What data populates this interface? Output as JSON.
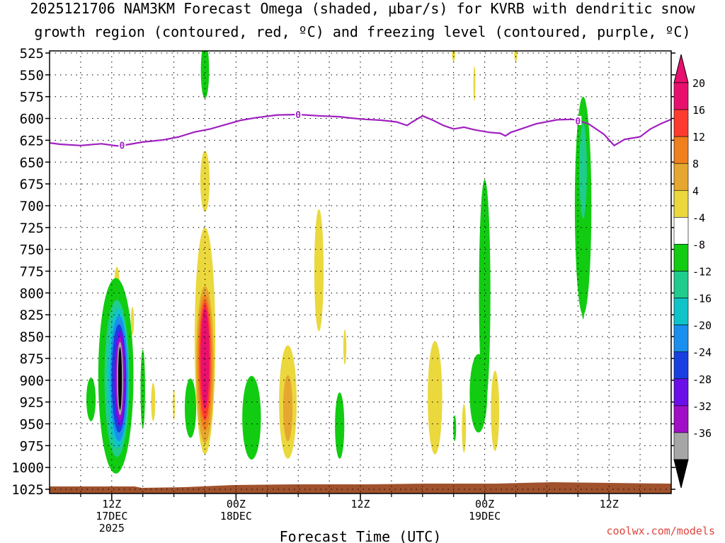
{
  "title_line1": "2025121706 NAM3KM Forecast Omega (shaded, μbar/s) for KVRB with dendritic snow",
  "title_line2": "growth region (contoured, red, ºC) and freezing level (contoured, purple, ºC)",
  "credit": "coolwx.com/models",
  "chart_data": {
    "type": "heatmap",
    "title": "2025121706 NAM3KM Forecast Omega (shaded, μbar/s) for KVRB with dendritic snow growth region (contoured, red, ºC) and freezing level (contoured, purple, ºC)",
    "xlabel": "Forecast Time (UTC)",
    "ylabel": "",
    "x_range_hours": [
      6,
      66
    ],
    "y_range_mb": [
      520,
      1030
    ],
    "y_ticks": [
      525,
      550,
      575,
      600,
      625,
      650,
      675,
      700,
      725,
      750,
      775,
      800,
      825,
      850,
      875,
      900,
      925,
      950,
      975,
      1000,
      1025
    ],
    "x_ticks": [
      {
        "hour": 12,
        "line1": "12Z",
        "line2": "17DEC",
        "line3": "2025"
      },
      {
        "hour": 24,
        "line1": "00Z",
        "line2": "18DEC",
        "line3": ""
      },
      {
        "hour": 36,
        "line1": "12Z",
        "line2": "",
        "line3": ""
      },
      {
        "hour": 48,
        "line1": "00Z",
        "line2": "19DEC",
        "line3": ""
      },
      {
        "hour": 60,
        "line1": "12Z",
        "line2": "",
        "line3": ""
      }
    ],
    "colorbar": {
      "labels": [
        "20",
        "16",
        "12",
        "8",
        "4",
        "-4",
        "-8",
        "-12",
        "-16",
        "-20",
        "-24",
        "-28",
        "-32",
        "-36"
      ],
      "colors": [
        "#e8106e",
        "#ff3b2f",
        "#f07f1e",
        "#e5a72f",
        "#ead83d",
        "#ffffff",
        "#11cc11",
        "#1fcc8e",
        "#0fc4c8",
        "#1a8fee",
        "#1a3fe0",
        "#6b0fe8",
        "#a00fc6",
        "#a6a6a6"
      ],
      "top_arrow_color": "#e8106e",
      "bottom_arrow_color": "#000000"
    },
    "freezing_level": {
      "color": "#a020c0",
      "label": "0",
      "label_hours": [
        13,
        30,
        57
      ],
      "points": [
        [
          6,
          628
        ],
        [
          7,
          629.5
        ],
        [
          9,
          631
        ],
        [
          11,
          629
        ],
        [
          12.5,
          631.5
        ],
        [
          13.5,
          630
        ],
        [
          15,
          627
        ],
        [
          17,
          624.5
        ],
        [
          18.5,
          621
        ],
        [
          20,
          615.5
        ],
        [
          21.5,
          612
        ],
        [
          23,
          607
        ],
        [
          24.5,
          602
        ],
        [
          26,
          599
        ],
        [
          28,
          596
        ],
        [
          30,
          595.5
        ],
        [
          32,
          597
        ],
        [
          34,
          598
        ],
        [
          35,
          599.5
        ],
        [
          36.5,
          601
        ],
        [
          38,
          602
        ],
        [
          39.5,
          604
        ],
        [
          40.5,
          608
        ],
        [
          41,
          604
        ],
        [
          42,
          597
        ],
        [
          43,
          602
        ],
        [
          44,
          608
        ],
        [
          45,
          612
        ],
        [
          46,
          610
        ],
        [
          47,
          613
        ],
        [
          48.5,
          616
        ],
        [
          49.5,
          617
        ],
        [
          50,
          620
        ],
        [
          50.5,
          616
        ],
        [
          51.5,
          612
        ],
        [
          53,
          606
        ],
        [
          55,
          601.5
        ],
        [
          56.5,
          601
        ],
        [
          58,
          606
        ],
        [
          59.5,
          618
        ],
        [
          60.5,
          631
        ],
        [
          61.5,
          624
        ],
        [
          63,
          621
        ],
        [
          64,
          612
        ],
        [
          65,
          606
        ],
        [
          66,
          601
        ]
      ]
    },
    "cells": [
      {
        "label": "omega-4-cell",
        "hour": 12.5,
        "mb": 790,
        "hw": 0.25,
        "hh": 20,
        "color": "#ead83d"
      },
      {
        "label": "omega-8-cell",
        "hour": 12.4,
        "mb": 895,
        "hw": 1.7,
        "hh": 112,
        "color": "#11cc11"
      },
      {
        "label": "omega-12-cell",
        "hour": 12.5,
        "mb": 898,
        "hw": 1.2,
        "hh": 90,
        "color": "#1fcc8e"
      },
      {
        "label": "omega-16-cell",
        "hour": 12.6,
        "mb": 898,
        "hw": 1.0,
        "hh": 80,
        "color": "#0fc4c8"
      },
      {
        "label": "omega-20-cell",
        "hour": 12.7,
        "mb": 898,
        "hw": 0.85,
        "hh": 72,
        "color": "#1a8fee"
      },
      {
        "label": "omega-24-cell",
        "hour": 12.7,
        "mb": 898,
        "hw": 0.7,
        "hh": 62,
        "color": "#1a3fe0"
      },
      {
        "label": "omega-28-cell",
        "hour": 12.8,
        "mb": 898,
        "hw": 0.55,
        "hh": 55,
        "color": "#6b0fe8"
      },
      {
        "label": "omega-32-cell",
        "hour": 12.8,
        "mb": 898,
        "hw": 0.42,
        "hh": 48,
        "color": "#a00fc6"
      },
      {
        "label": "omega-36-cell",
        "hour": 12.8,
        "mb": 898,
        "hw": 0.3,
        "hh": 42,
        "color": "#a6a6a6"
      },
      {
        "label": "omega-40-cell",
        "hour": 12.8,
        "mb": 898,
        "hw": 0.18,
        "hh": 36,
        "color": "#000000"
      },
      {
        "label": "omega-8-cell",
        "hour": 10.0,
        "mb": 922,
        "hw": 0.45,
        "hh": 25,
        "color": "#11cc11"
      },
      {
        "label": "omega-4-cell",
        "hour": 14.0,
        "mb": 832,
        "hw": 0.15,
        "hh": 16,
        "color": "#ead83d"
      },
      {
        "label": "omega-8-cell",
        "hour": 15.0,
        "mb": 910,
        "hw": 0.22,
        "hh": 45,
        "color": "#11cc11"
      },
      {
        "label": "omega-4-cell",
        "hour": 16.0,
        "mb": 925,
        "hw": 0.2,
        "hh": 22,
        "color": "#ead83d"
      },
      {
        "label": "omega-4-cell",
        "hour": 18.0,
        "mb": 928,
        "hw": 0.1,
        "hh": 18,
        "color": "#ead83d"
      },
      {
        "label": "omega-8-cell",
        "hour": 19.6,
        "mb": 932,
        "hw": 0.55,
        "hh": 34,
        "color": "#11cc11"
      },
      {
        "label": "omega-8-cell",
        "hour": 21.0,
        "mb": 545,
        "hw": 0.4,
        "hh": 32,
        "color": "#11cc11"
      },
      {
        "label": "omega-4-cell",
        "hour": 21.0,
        "mb": 672,
        "hw": 0.45,
        "hh": 35,
        "color": "#ead83d"
      },
      {
        "label": "omega-4-cell",
        "hour": 21.0,
        "mb": 855,
        "hw": 1.0,
        "hh": 130,
        "color": "#ead83d"
      },
      {
        "label": "omega-8-cell",
        "hour": 21.0,
        "mb": 882,
        "hw": 0.85,
        "hh": 90,
        "color": "#e5a72f"
      },
      {
        "label": "omega-12-cell",
        "hour": 21.0,
        "mb": 880,
        "hw": 0.7,
        "hh": 78,
        "color": "#f07f1e"
      },
      {
        "label": "omega-16-cell",
        "hour": 21.0,
        "mb": 878,
        "hw": 0.56,
        "hh": 68,
        "color": "#ff3b2f"
      },
      {
        "label": "omega-20-cell",
        "hour": 21.0,
        "mb": 875,
        "hw": 0.42,
        "hh": 58,
        "color": "#e8106e"
      },
      {
        "label": "omega-8-cell",
        "hour": 25.5,
        "mb": 943,
        "hw": 0.9,
        "hh": 48,
        "color": "#11cc11"
      },
      {
        "label": "omega-4-cell",
        "hour": 29.0,
        "mb": 925,
        "hw": 0.85,
        "hh": 65,
        "color": "#ead83d"
      },
      {
        "label": "omega-8-cell",
        "hour": 29.0,
        "mb": 932,
        "hw": 0.45,
        "hh": 38,
        "color": "#e5a72f"
      },
      {
        "label": "omega-4-cell",
        "hour": 32.0,
        "mb": 774,
        "hw": 0.45,
        "hh": 70,
        "color": "#ead83d"
      },
      {
        "label": "omega-4-cell",
        "hour": 34.5,
        "mb": 862,
        "hw": 0.15,
        "hh": 20,
        "color": "#ead83d"
      },
      {
        "label": "omega-8-cell",
        "hour": 34.0,
        "mb": 952,
        "hw": 0.45,
        "hh": 38,
        "color": "#11cc11"
      },
      {
        "label": "omega-4-cell",
        "hour": 45.0,
        "mb": 525,
        "hw": 0.15,
        "hh": 10,
        "color": "#ead83d"
      },
      {
        "label": "omega-4-cell",
        "hour": 51.0,
        "mb": 525,
        "hw": 0.15,
        "hh": 10,
        "color": "#ead83d"
      },
      {
        "label": "omega-4-cell",
        "hour": 47.0,
        "mb": 560,
        "hw": 0.1,
        "hh": 20,
        "color": "#ead83d"
      },
      {
        "label": "omega-4-cell",
        "hour": 43.2,
        "mb": 920,
        "hw": 0.7,
        "hh": 65,
        "color": "#ead83d"
      },
      {
        "label": "omega-8-cell",
        "hour": 45.1,
        "mb": 955,
        "hw": 0.14,
        "hh": 15,
        "color": "#11cc11"
      },
      {
        "label": "omega-4-cell",
        "hour": 46.0,
        "mb": 955,
        "hw": 0.2,
        "hh": 28,
        "color": "#ead83d"
      },
      {
        "label": "omega-8-cell",
        "hour": 48.0,
        "mb": 800,
        "hw": 0.55,
        "hh": 130,
        "color": "#11cc11"
      },
      {
        "label": "omega-8-cell",
        "hour": 47.4,
        "mb": 915,
        "hw": 0.85,
        "hh": 45,
        "color": "#11cc11"
      },
      {
        "label": "omega-4-cell",
        "hour": 49.0,
        "mb": 935,
        "hw": 0.4,
        "hh": 46,
        "color": "#ead83d"
      },
      {
        "label": "omega-8-cell",
        "hour": 57.5,
        "mb": 700,
        "hw": 0.8,
        "hh": 125,
        "color": "#11cc11"
      },
      {
        "label": "omega-12-cell",
        "hour": 57.5,
        "mb": 660,
        "hw": 0.35,
        "hh": 55,
        "color": "#1fcc8e"
      },
      {
        "label": "omega-8-cell",
        "hour": 57.5,
        "mb": 800,
        "hw": 0.18,
        "hh": 30,
        "color": "#11cc11"
      }
    ]
  }
}
